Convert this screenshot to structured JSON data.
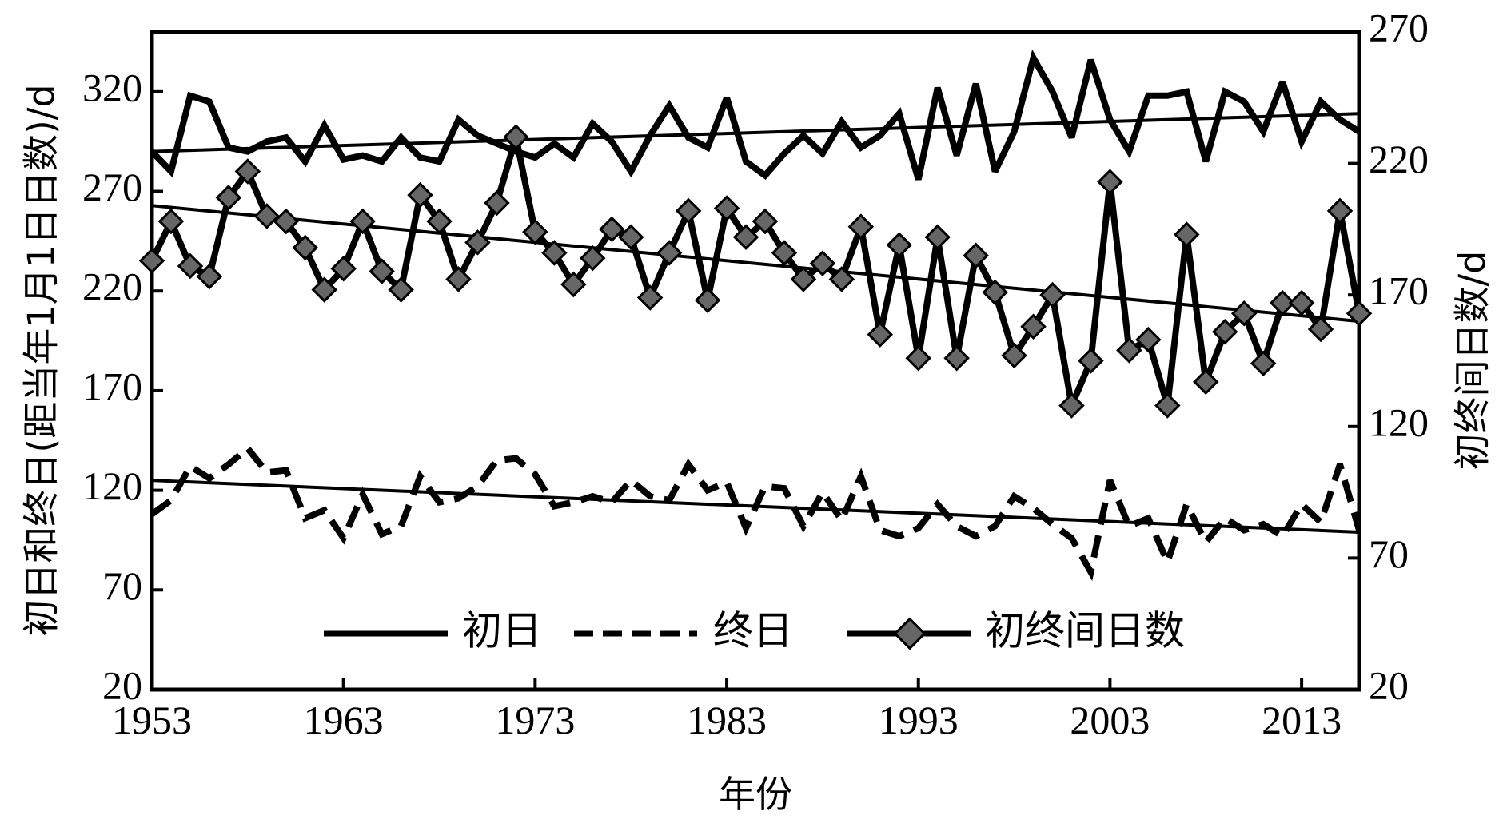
{
  "chart_data": {
    "type": "line",
    "xlabel": "年份",
    "ylabel": "初日和终日(距当年1月1日日数)/d",
    "y2label": "初终间日数/d",
    "xlim": [
      1953,
      2016
    ],
    "ylim": [
      20,
      350
    ],
    "y2lim": [
      20,
      270
    ],
    "x_ticks": [
      1953,
      1963,
      1973,
      1983,
      1993,
      2003,
      2013
    ],
    "y_ticks": [
      20,
      70,
      120,
      170,
      220,
      270,
      320
    ],
    "y2_ticks": [
      20,
      70,
      120,
      170,
      220,
      270
    ],
    "grid": false,
    "legend": {
      "placement": "bottom-center",
      "entries": [
        "初日",
        "终日",
        "初终间日数"
      ]
    },
    "x": [
      1953,
      1954,
      1955,
      1956,
      1957,
      1958,
      1959,
      1960,
      1961,
      1962,
      1963,
      1964,
      1965,
      1966,
      1967,
      1968,
      1969,
      1970,
      1971,
      1972,
      1973,
      1974,
      1975,
      1976,
      1977,
      1978,
      1979,
      1980,
      1981,
      1982,
      1983,
      1984,
      1985,
      1986,
      1987,
      1988,
      1989,
      1990,
      1991,
      1992,
      1993,
      1994,
      1995,
      1996,
      1997,
      1998,
      1999,
      2000,
      2001,
      2002,
      2003,
      2004,
      2005,
      2006,
      2007,
      2008,
      2009,
      2010,
      2011,
      2012,
      2013,
      2014,
      2015,
      2016
    ],
    "series": [
      {
        "name": "初日",
        "axis": "left",
        "style": "solid",
        "values": [
          290,
          280,
          318,
          315,
          292,
          290,
          295,
          297,
          285,
          303,
          286,
          288,
          285,
          297,
          287,
          285,
          306,
          298,
          294,
          290,
          287,
          294,
          287,
          304,
          295,
          280,
          298,
          313,
          297,
          292,
          317,
          285,
          278,
          289,
          298,
          289,
          305,
          292,
          298,
          309,
          276,
          322,
          288,
          324,
          280,
          300,
          337,
          320,
          297,
          336,
          306,
          290,
          318,
          318,
          320,
          285,
          320,
          315,
          300,
          325,
          295,
          315,
          306,
          300
        ],
        "trend": [
          290,
          309
        ]
      },
      {
        "name": "终日",
        "axis": "left",
        "style": "dashed",
        "values": [
          108,
          115,
          132,
          126,
          133,
          141,
          129,
          130,
          106,
          110,
          96,
          118,
          98,
          102,
          127,
          114,
          116,
          122,
          135,
          136,
          128,
          112,
          114,
          117,
          114,
          125,
          117,
          115,
          133,
          120,
          124,
          101,
          122,
          121,
          102,
          119,
          105,
          127,
          100,
          97,
          101,
          113,
          102,
          97,
          102,
          117,
          111,
          103,
          96,
          79,
          125,
          102,
          106,
          84,
          113,
          94,
          106,
          100,
          103,
          97,
          113,
          104,
          133,
          100
        ],
        "trend": [
          125,
          99
        ]
      },
      {
        "name": "初终间日数",
        "axis": "right",
        "style": "solid-marker",
        "values": [
          183,
          198,
          181,
          177,
          207,
          217,
          200,
          198,
          188,
          172,
          180,
          198,
          179,
          172,
          208,
          198,
          176,
          190,
          205,
          230,
          194,
          186,
          174,
          184,
          195,
          192,
          169,
          186,
          202,
          168,
          203,
          192,
          198,
          186,
          176,
          182,
          176,
          196,
          155,
          189,
          146,
          192,
          146,
          185,
          171,
          147,
          158,
          170,
          128,
          145,
          213,
          149,
          153,
          128,
          193,
          137,
          156,
          163,
          144,
          167,
          167,
          157,
          202,
          163
        ],
        "trend": [
          204,
          160
        ]
      }
    ]
  }
}
